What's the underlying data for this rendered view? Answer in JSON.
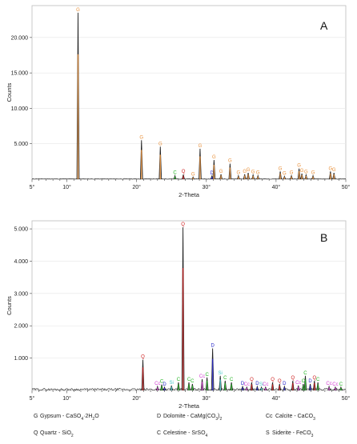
{
  "chart_data": [
    {
      "panel": "A",
      "type": "line",
      "xlabel": "2-Theta",
      "ylabel": "Counts",
      "xlim": [
        5,
        50
      ],
      "ylim": [
        0,
        24500
      ],
      "x_ticks": [
        5,
        10,
        20,
        30,
        40,
        50
      ],
      "x_tick_labels": [
        "5°",
        "10°",
        "20°",
        "30°",
        "40°",
        "50°"
      ],
      "y_ticks": [
        5000,
        10000,
        15000,
        20000
      ],
      "y_tick_labels": [
        "5.000",
        "10.000",
        "15.000",
        "20.000"
      ],
      "peaks": [
        {
          "x": 11.6,
          "y": 23500,
          "mineral": "G"
        },
        {
          "x": 20.7,
          "y": 5500,
          "mineral": "G"
        },
        {
          "x": 23.4,
          "y": 4600,
          "mineral": "G"
        },
        {
          "x": 25.5,
          "y": 500,
          "mineral": "C"
        },
        {
          "x": 26.7,
          "y": 650,
          "mineral": "Q"
        },
        {
          "x": 28.1,
          "y": 300,
          "mineral": "G"
        },
        {
          "x": 29.1,
          "y": 4300,
          "mineral": "G"
        },
        {
          "x": 30.8,
          "y": 450,
          "mineral": "D"
        },
        {
          "x": 31.1,
          "y": 2700,
          "mineral": "G"
        },
        {
          "x": 32.1,
          "y": 700,
          "mineral": "G"
        },
        {
          "x": 33.4,
          "y": 2200,
          "mineral": "G"
        },
        {
          "x": 34.6,
          "y": 500,
          "mineral": "G"
        },
        {
          "x": 35.5,
          "y": 700,
          "mineral": "G"
        },
        {
          "x": 36.0,
          "y": 900,
          "mineral": "G"
        },
        {
          "x": 36.7,
          "y": 600,
          "mineral": "G"
        },
        {
          "x": 37.4,
          "y": 500,
          "mineral": "G"
        },
        {
          "x": 40.6,
          "y": 1100,
          "mineral": "G"
        },
        {
          "x": 41.2,
          "y": 400,
          "mineral": "G"
        },
        {
          "x": 42.2,
          "y": 500,
          "mineral": "G"
        },
        {
          "x": 43.3,
          "y": 1500,
          "mineral": "G"
        },
        {
          "x": 43.7,
          "y": 800,
          "mineral": "G"
        },
        {
          "x": 44.3,
          "y": 600,
          "mineral": "G"
        },
        {
          "x": 45.3,
          "y": 500,
          "mineral": "G"
        },
        {
          "x": 47.8,
          "y": 1100,
          "mineral": "G"
        },
        {
          "x": 48.3,
          "y": 900,
          "mineral": "G"
        }
      ]
    },
    {
      "panel": "B",
      "type": "line",
      "xlabel": "2-Theta",
      "ylabel": "Counts",
      "xlim": [
        5,
        50
      ],
      "ylim": [
        0,
        5250
      ],
      "x_ticks": [
        5,
        10,
        20,
        30,
        40,
        50
      ],
      "x_tick_labels": [
        "5°",
        "10°",
        "20°",
        "30°",
        "40°",
        "50°"
      ],
      "y_ticks": [
        1000,
        2000,
        3000,
        4000,
        5000
      ],
      "y_tick_labels": [
        "1.000",
        "2.000",
        "3.000",
        "4.000",
        "5.000"
      ],
      "peaks": [
        {
          "x": 20.9,
          "y": 950,
          "mineral": "Q"
        },
        {
          "x": 23.0,
          "y": 120,
          "mineral": "Cc"
        },
        {
          "x": 23.6,
          "y": 180,
          "mineral": "C"
        },
        {
          "x": 24.0,
          "y": 100,
          "mineral": "D"
        },
        {
          "x": 25.0,
          "y": 150,
          "mineral": "S"
        },
        {
          "x": 26.0,
          "y": 250,
          "mineral": "C"
        },
        {
          "x": 26.65,
          "y": 5050,
          "mineral": "Q"
        },
        {
          "x": 27.5,
          "y": 250,
          "mineral": "C"
        },
        {
          "x": 28.0,
          "y": 200,
          "mineral": "C"
        },
        {
          "x": 29.4,
          "y": 350,
          "mineral": "Cc"
        },
        {
          "x": 30.1,
          "y": 400,
          "mineral": "C"
        },
        {
          "x": 30.9,
          "y": 1300,
          "mineral": "D"
        },
        {
          "x": 32.0,
          "y": 450,
          "mineral": "S"
        },
        {
          "x": 32.7,
          "y": 300,
          "mineral": "C"
        },
        {
          "x": 33.6,
          "y": 250,
          "mineral": "C"
        },
        {
          "x": 35.2,
          "y": 120,
          "mineral": "D"
        },
        {
          "x": 35.8,
          "y": 100,
          "mineral": "Cc"
        },
        {
          "x": 36.5,
          "y": 250,
          "mineral": "Q"
        },
        {
          "x": 37.3,
          "y": 120,
          "mineral": "D"
        },
        {
          "x": 37.9,
          "y": 100,
          "mineral": "S"
        },
        {
          "x": 38.5,
          "y": 100,
          "mineral": "Cc"
        },
        {
          "x": 39.5,
          "y": 250,
          "mineral": "Q"
        },
        {
          "x": 40.5,
          "y": 200,
          "mineral": "Q"
        },
        {
          "x": 41.2,
          "y": 120,
          "mineral": "D"
        },
        {
          "x": 42.4,
          "y": 300,
          "mineral": "Q"
        },
        {
          "x": 43.2,
          "y": 150,
          "mineral": "Cc"
        },
        {
          "x": 43.9,
          "y": 200,
          "mineral": "C"
        },
        {
          "x": 44.2,
          "y": 450,
          "mineral": "C"
        },
        {
          "x": 44.9,
          "y": 200,
          "mineral": "D"
        },
        {
          "x": 45.5,
          "y": 300,
          "mineral": "Q"
        },
        {
          "x": 46.0,
          "y": 250,
          "mineral": "C"
        },
        {
          "x": 47.6,
          "y": 120,
          "mineral": "Cc"
        },
        {
          "x": 48.5,
          "y": 100,
          "mineral": "Cc"
        },
        {
          "x": 49.3,
          "y": 100,
          "mineral": "C"
        }
      ]
    }
  ],
  "legend": [
    {
      "code": "G",
      "color": "#e8903a",
      "name": "Gypsum",
      "formula_html": "CaSO<sub>4</sub>·2H<sub>2</sub>O"
    },
    {
      "code": "D",
      "color": "#2424c8",
      "name": "Dolomite",
      "formula_html": "CaMg(CO<sub>3</sub>)<sub>2</sub>"
    },
    {
      "code": "Cc",
      "color": "#d23cd2",
      "name": "Calcite",
      "formula_html": "CaCO<sub>3</sub>"
    },
    {
      "code": "Q",
      "color": "#cc1a1a",
      "name": "Quartz",
      "formula_html": "SiO<sub>2</sub>"
    },
    {
      "code": "C",
      "color": "#22b422",
      "name": "Celestine",
      "formula_html": "SrSO<sub>4</sub>"
    },
    {
      "code": "S",
      "color": "#46c8c8",
      "name": "Siderite",
      "formula_html": "FeCO<sub>3</sub>"
    }
  ]
}
